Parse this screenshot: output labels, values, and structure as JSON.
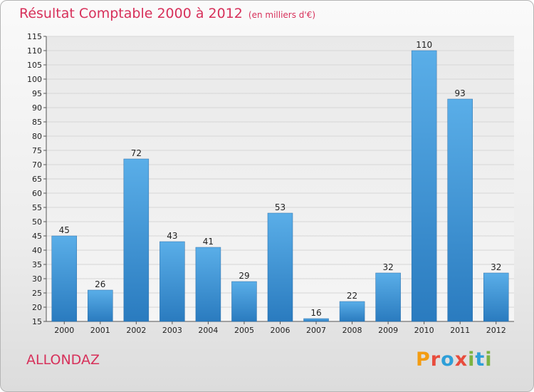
{
  "title": "Résultat Comptable 2000 à 2012",
  "subtitle": "(en milliers d'€)",
  "location": "ALLONDAZ",
  "brand": "Proxiti",
  "brand_colors": [
    "#f39c12",
    "#e84c3d",
    "#2e9fd8",
    "#e84c3d",
    "#7cb342",
    "#2e9fd8",
    "#7cb342"
  ],
  "chart_data": {
    "type": "bar",
    "title": "Résultat Comptable 2000 à 2012",
    "xlabel": "",
    "ylabel": "",
    "categories": [
      "2000",
      "2001",
      "2002",
      "2003",
      "2004",
      "2005",
      "2006",
      "2007",
      "2008",
      "2009",
      "2010",
      "2011",
      "2012"
    ],
    "values": [
      45,
      26,
      72,
      43,
      41,
      29,
      53,
      16,
      22,
      32,
      110,
      93,
      32
    ],
    "ylim": [
      15,
      115
    ],
    "yticks": [
      15,
      20,
      25,
      30,
      35,
      40,
      45,
      50,
      55,
      60,
      65,
      70,
      75,
      80,
      85,
      90,
      95,
      100,
      105,
      110,
      115
    ],
    "grid": true,
    "bar_color": "#3d92d6"
  }
}
